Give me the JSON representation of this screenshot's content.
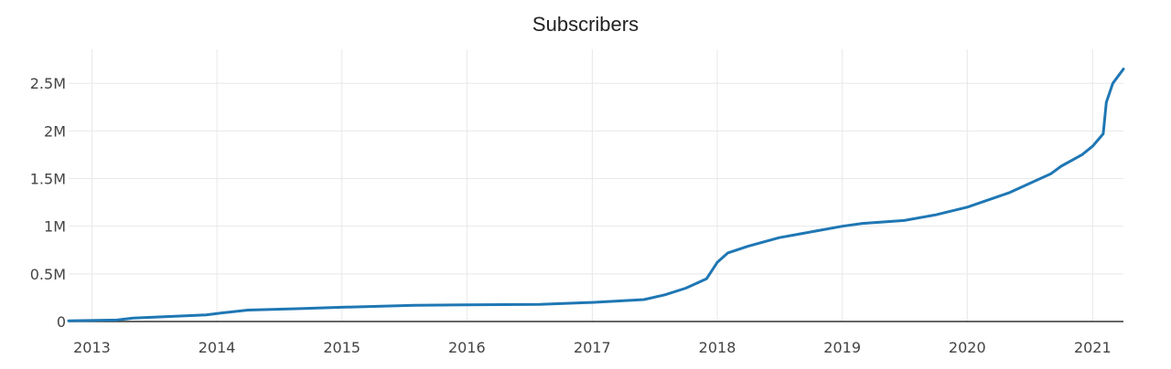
{
  "chart_data": {
    "type": "line",
    "title": "Subscribers",
    "xlabel": "",
    "ylabel": "",
    "x_tick_labels": [
      "2013",
      "2014",
      "2015",
      "2016",
      "2017",
      "2018",
      "2019",
      "2020",
      "2021"
    ],
    "y_tick_labels": [
      "0",
      "0.5M",
      "1M",
      "1.5M",
      "2M",
      "2.5M"
    ],
    "y_tick_values": [
      0,
      500000,
      1000000,
      1500000,
      2000000,
      2500000
    ],
    "xlim": [
      "2012-10-25",
      "2021-04-01"
    ],
    "ylim": [
      0,
      2780000
    ],
    "grid": true,
    "series": [
      {
        "color": "#1f77b4",
        "x": [
          "2012-10-25",
          "2013-03-15",
          "2013-05-01",
          "2013-07-01",
          "2013-09-01",
          "2013-12-01",
          "2014-01-15",
          "2014-04-01",
          "2014-09-01",
          "2015-01-01",
          "2015-08-01",
          "2016-01-01",
          "2016-08-01",
          "2017-01-01",
          "2017-06-01",
          "2017-08-01",
          "2017-10-01",
          "2017-11-01",
          "2017-12-01",
          "2018-01-01",
          "2018-02-01",
          "2018-04-01",
          "2018-07-01",
          "2018-09-01",
          "2019-01-01",
          "2019-03-01",
          "2019-07-01",
          "2019-10-01",
          "2020-01-01",
          "2020-05-01",
          "2020-09-01",
          "2020-10-01",
          "2020-12-01",
          "2021-01-01",
          "2021-02-01",
          "2021-02-10",
          "2021-03-01",
          "2021-04-01"
        ],
        "y": [
          8000,
          15000,
          35000,
          45000,
          55000,
          70000,
          90000,
          120000,
          135000,
          150000,
          170000,
          175000,
          180000,
          200000,
          230000,
          280000,
          350000,
          400000,
          450000,
          620000,
          720000,
          790000,
          880000,
          920000,
          1000000,
          1030000,
          1060000,
          1120000,
          1200000,
          1350000,
          1550000,
          1630000,
          1750000,
          1840000,
          1970000,
          2300000,
          2500000,
          2650000
        ]
      }
    ]
  }
}
